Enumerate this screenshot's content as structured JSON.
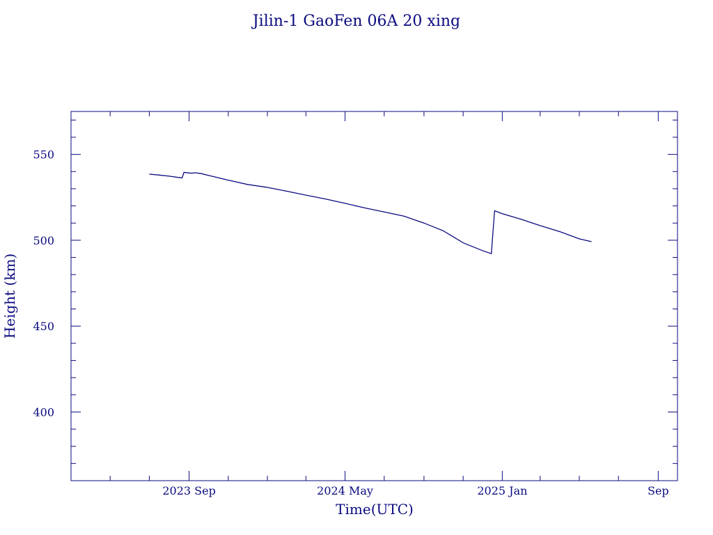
{
  "chart_data": {
    "type": "line",
    "title": "Jilin-1 GaoFen 06A 20 xing",
    "xlabel": "Time(UTC)",
    "ylabel": "Height (km)",
    "x_axis": "date",
    "xlim": [
      "2023-03-01",
      "2025-10-01"
    ],
    "ylim": [
      360,
      575
    ],
    "x_tick_labels": [
      {
        "date": "2023-09-01",
        "label": "2023 Sep"
      },
      {
        "date": "2024-05-01",
        "label": "2024 May"
      },
      {
        "date": "2025-01-01",
        "label": "2025 Jan"
      },
      {
        "date": "2025-09-01",
        "label": "Sep"
      }
    ],
    "y_tick_labels": [
      {
        "value": 400,
        "label": "400"
      },
      {
        "value": 450,
        "label": "450"
      },
      {
        "value": 500,
        "label": "500"
      },
      {
        "value": 550,
        "label": "550"
      }
    ],
    "y_minor_step": 10,
    "x_minor_month_step": 2,
    "grid": false,
    "line_color": "#0a0a80",
    "axis_color": "#0a0a80",
    "series": [
      {
        "points": [
          [
            "2023-07-01",
            538.5
          ],
          [
            "2023-07-15",
            538.0
          ],
          [
            "2023-08-01",
            537.3
          ],
          [
            "2023-08-15",
            536.6
          ],
          [
            "2023-08-21",
            536.3
          ],
          [
            "2023-08-24",
            539.5
          ],
          [
            "2023-09-05",
            539.0
          ],
          [
            "2023-09-10",
            539.3
          ],
          [
            "2023-09-20",
            538.8
          ],
          [
            "2023-10-01",
            537.8
          ],
          [
            "2023-11-01",
            535.0
          ],
          [
            "2023-12-01",
            532.5
          ],
          [
            "2024-01-01",
            530.8
          ],
          [
            "2024-02-01",
            528.5
          ],
          [
            "2024-03-01",
            526.3
          ],
          [
            "2024-04-01",
            524.0
          ],
          [
            "2024-05-01",
            521.5
          ],
          [
            "2024-06-01",
            518.8
          ],
          [
            "2024-07-01",
            516.5
          ],
          [
            "2024-08-01",
            514.0
          ],
          [
            "2024-09-01",
            510.0
          ],
          [
            "2024-10-01",
            505.5
          ],
          [
            "2024-11-01",
            498.5
          ],
          [
            "2024-12-01",
            494.0
          ],
          [
            "2024-12-15",
            492.2
          ],
          [
            "2024-12-20",
            517.2
          ],
          [
            "2025-01-01",
            515.5
          ],
          [
            "2025-02-01",
            512.0
          ],
          [
            "2025-03-01",
            508.5
          ],
          [
            "2025-04-01",
            505.0
          ],
          [
            "2025-05-01",
            500.8
          ],
          [
            "2025-05-20",
            499.2
          ]
        ]
      }
    ]
  }
}
